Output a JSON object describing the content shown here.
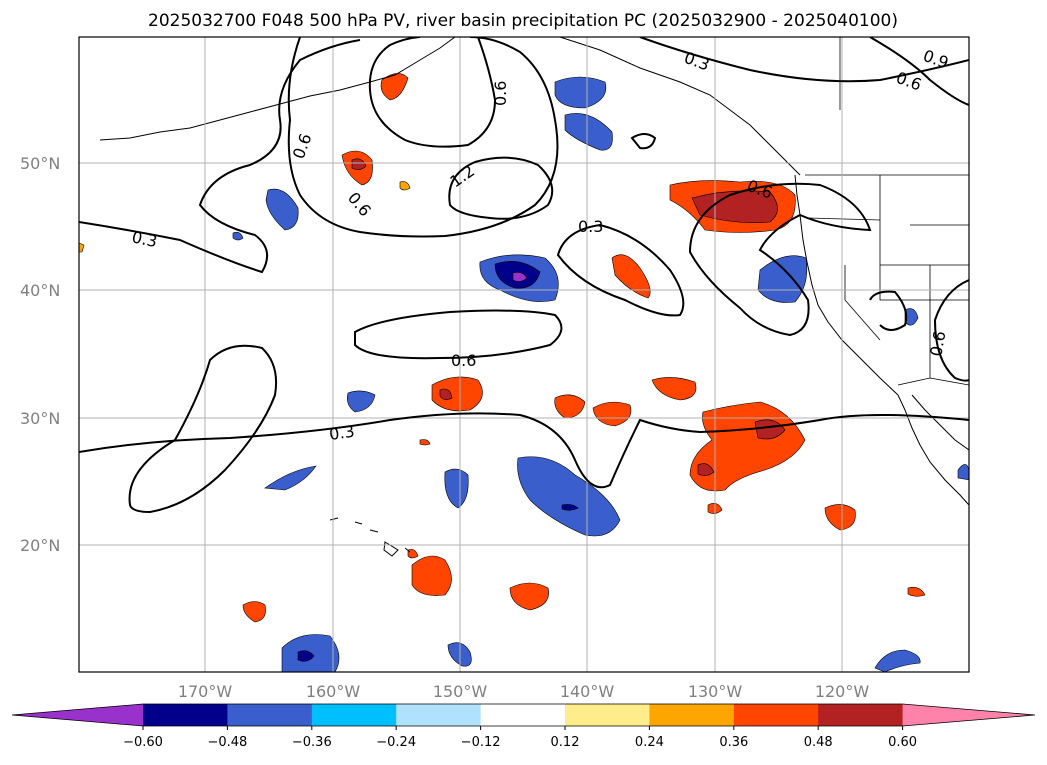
{
  "title": "2025032700 F048 500 hPa PV, river basin precipitation PC (2025032900 - 2025040100)",
  "lat_labels": [
    "50°N",
    "40°N",
    "30°N",
    "20°N"
  ],
  "lon_labels": [
    "170°W",
    "160°W",
    "150°W",
    "140°W",
    "130°W",
    "120°W"
  ],
  "contour_labels": [
    "0.3",
    "0.9",
    "0.6",
    "0.6",
    "0.6",
    "1.2",
    "0.3",
    "0.3",
    "0.6",
    "0.6",
    "0.6",
    "0.3",
    "0.6"
  ],
  "colorbar": {
    "ticks": [
      "−0.60",
      "−0.48",
      "−0.36",
      "−0.24",
      "−0.12",
      "0.12",
      "0.24",
      "0.36",
      "0.48",
      "0.60"
    ],
    "colors": [
      "#9932cc",
      "#00008b",
      "#3a5fcd",
      "#00bfff",
      "#b0e2ff",
      "#ffffff",
      "#ffec8b",
      "#ffa500",
      "#ff4500",
      "#b22222",
      "#ff82ab"
    ]
  }
}
